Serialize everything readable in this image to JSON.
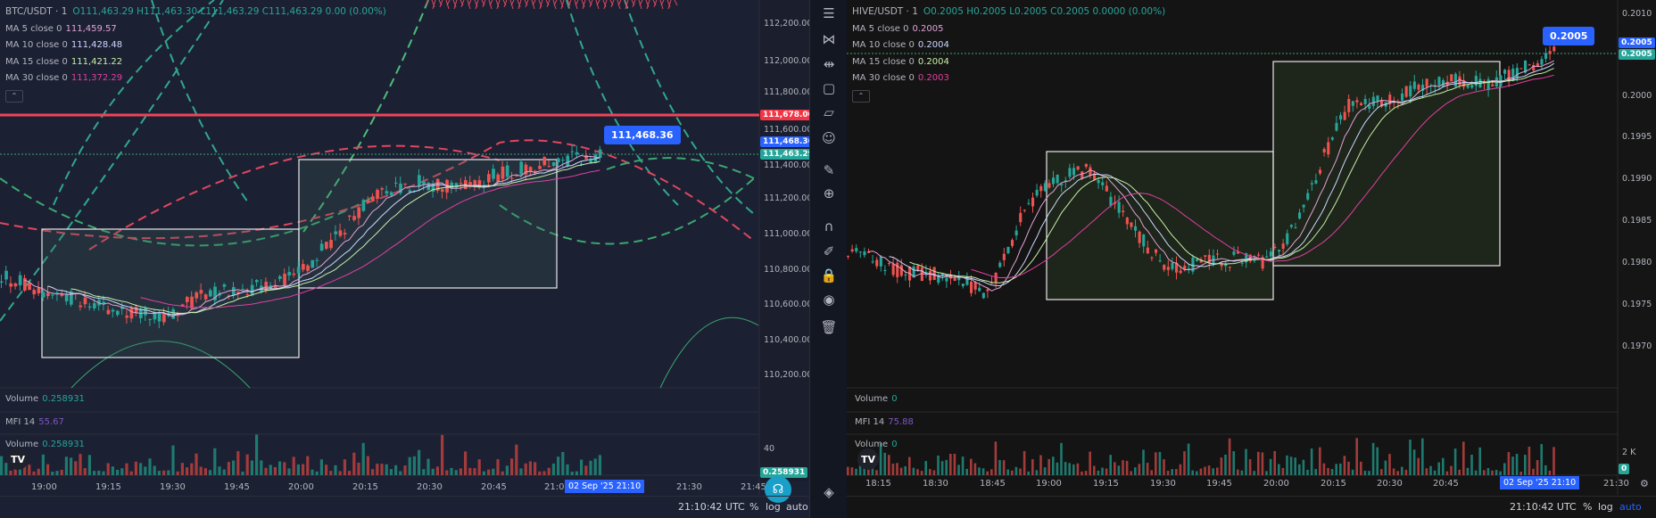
{
  "left_chart": {
    "symbol": "BTC/USDT · 1",
    "ohlc": "O111,463.29 H111,463.30 L111,463.29 C111,463.29 0.00 (0.00%)",
    "ma": [
      {
        "label": "MA 5 close 0",
        "value": "111,459.57",
        "color": "#e1a3d6"
      },
      {
        "label": "MA 10 close 0",
        "value": "111,428.48",
        "color": "#cfd8ff"
      },
      {
        "label": "MA 15 close 0",
        "value": "111,421.22",
        "color": "#c7f0a6"
      },
      {
        "label": "MA 30 close 0",
        "value": "111,372.29",
        "color": "#e040a0"
      }
    ],
    "price_axis": [
      "112,200.00",
      "112,000.00",
      "111,800.00",
      "111,600.00",
      "111,400.00",
      "111,200.00",
      "111,000.00",
      "110,800.00",
      "110,600.00",
      "110,400.00",
      "110,200.00"
    ],
    "tags": {
      "red_line": "111,678.00",
      "last": "111,468.36",
      "close": "111,463.29"
    },
    "callout": "111,468.36",
    "volume": {
      "label": "Volume",
      "value": "0.258931"
    },
    "mfi": {
      "label": "MFI 14",
      "value": "55.67"
    },
    "volume2": {
      "label": "Volume",
      "value": "0.258931"
    },
    "sub_axis": "40",
    "sub_tag": "0.258931",
    "time_axis": [
      "19:00",
      "19:15",
      "19:30",
      "19:45",
      "20:00",
      "20:15",
      "20:30",
      "20:45",
      "21:0",
      "21:30",
      "21:45"
    ],
    "time_tag": "02 Sep '25  21:10",
    "bottom": {
      "clock": "21:10:42 UTC",
      "percent": "%",
      "log": "log",
      "auto": "auto"
    },
    "logo": "TV"
  },
  "toolbar": {
    "icons": [
      "menu-icon",
      "pattern-icon",
      "lines-icon",
      "shapes-icon",
      "annotation-icon",
      "emoji-icon",
      "ruler-icon",
      "zoom-icon",
      "magnet-icon",
      "lock-pencil-icon",
      "lock-icon",
      "eye-icon",
      "trash-icon",
      "layers-icon"
    ],
    "glyphs": [
      "☰",
      "⋈",
      "⇹",
      "▢",
      "▱",
      "☺",
      "✎",
      "⊕",
      "∩",
      "✐",
      "🔒",
      "◉",
      "🗑",
      "◈"
    ]
  },
  "right_chart": {
    "symbol": "HIVE/USDT · 1",
    "ohlc": "O0.2005 H0.2005 L0.2005 C0.2005 0.0000 (0.00%)",
    "ma": [
      {
        "label": "MA 5 close 0",
        "value": "0.2005",
        "color": "#e1a3d6"
      },
      {
        "label": "MA 10 close 0",
        "value": "0.2004",
        "color": "#cfd8ff"
      },
      {
        "label": "MA 15 close 0",
        "value": "0.2004",
        "color": "#c7f0a6"
      },
      {
        "label": "MA 30 close 0",
        "value": "0.2003",
        "color": "#e040a0"
      }
    ],
    "price_axis": [
      "0.2010",
      "0.2000",
      "0.1995",
      "0.1990",
      "0.1985",
      "0.1980",
      "0.1975",
      "0.1970"
    ],
    "tags": {
      "last": "0.2005",
      "close": "0.2005"
    },
    "callout": "0.2005",
    "volume": {
      "label": "Volume",
      "value": "0"
    },
    "mfi": {
      "label": "MFI 14",
      "value": "75.88"
    },
    "volume2": {
      "label": "Volume",
      "value": "0"
    },
    "sub_axis": "2 K",
    "sub_tag": "0",
    "time_axis": [
      "18:15",
      "18:30",
      "18:45",
      "19:00",
      "19:15",
      "19:30",
      "19:45",
      "20:00",
      "20:15",
      "20:30",
      "20:45",
      "21:30"
    ],
    "time_tag": "02 Sep '25  21:10",
    "bottom": {
      "clock": "21:10:42 UTC",
      "percent": "%",
      "log": "log",
      "auto": "auto"
    },
    "logo": "TV"
  }
}
